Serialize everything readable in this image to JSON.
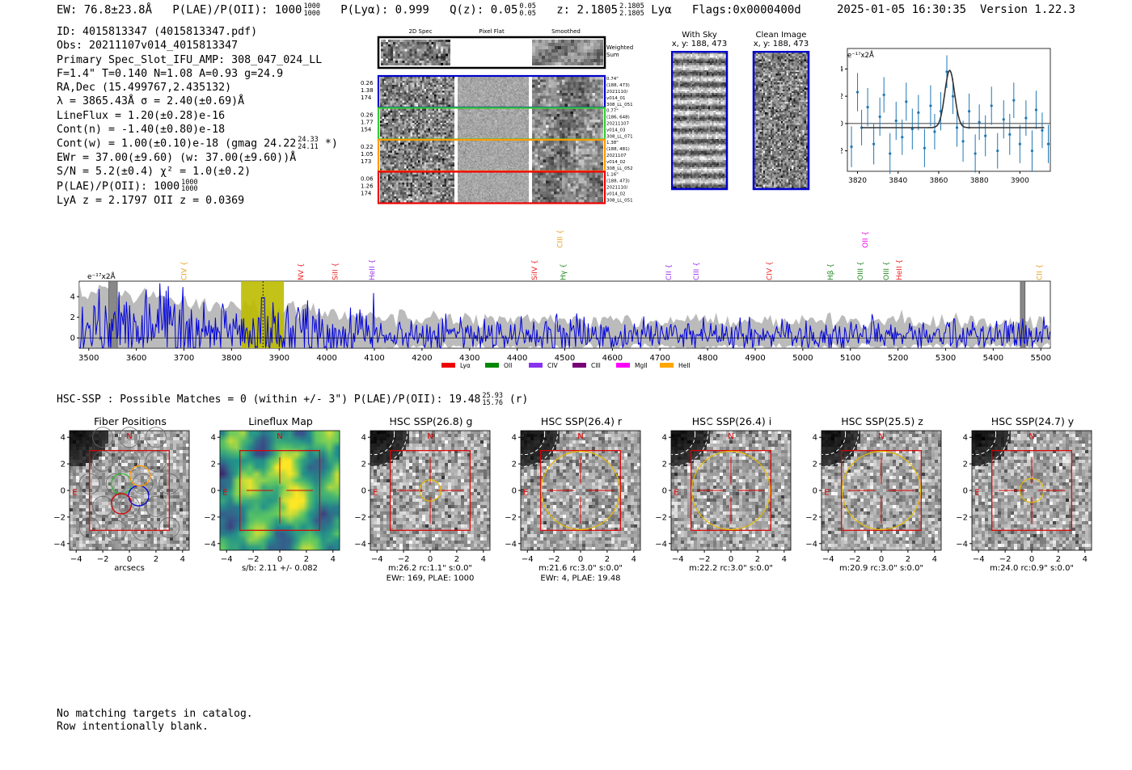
{
  "header": {
    "ew": "EW: 76.8±23.8Å",
    "plae": "P(LAE)/P(OII): 1000",
    "plae_hi": "1000",
    "plae_lo": "1000",
    "plya": "P(Lyα): 0.999",
    "qz": "Q(z): 0.05",
    "qz_hi": "0.05",
    "qz_lo": "0.05",
    "z": "z: 2.1805",
    "z_hi": "2.1805",
    "z_lo": "2.1805",
    "line": "Lyα",
    "flags": "Flags:0x0000400d",
    "timestamp": "2025-01-05 16:30:35",
    "version": "Version 1.22.3"
  },
  "info": {
    "id": "ID: 4015813347 (4015813347.pdf)",
    "obs": "Obs: 20211107v014_4015813347",
    "primary": "Primary Spec_Slot_IFU_AMP: 308_047_024_LL",
    "fit": "F=1.4\"  T=0.140  N=1.08  A=0.93  g=24.9",
    "radec": "RA,Dec (15.499767,2.435132)",
    "lambda": "λ = 3865.43Å  σ = 2.40(±0.69)Å",
    "lineflux": "LineFlux = 1.20(±0.28)e-16",
    "contn": "Cont(n) = -1.40(±0.80)e-18",
    "contw": "Cont(w) = 1.00(±0.10)e-18 (gmag 24.22",
    "contw_hi": "24.33",
    "contw_lo": "24.11",
    "contw_end": "*)",
    "ewr": "EWr = 37.00(±9.60) (w: 37.00(±9.60))Å",
    "sn": "S/N = 5.2(±0.4)  χ² = 1.0(±0.2)",
    "plae": "P(LAE)/P(OII): 1000",
    "plae_hi": "1000",
    "plae_lo": "1000",
    "lya_z": "LyA z = 2.1797  OII z = 0.0369"
  },
  "cutouts": {
    "col_2d": "2D Spec",
    "col_flat": "Pixel Flat",
    "col_smooth": "Smoothed",
    "weighted": "Weighted",
    "sum": "Sum",
    "rows": [
      {
        "color": "#0000cc",
        "left": [
          "0.26",
          "1.38",
          "174"
        ],
        "right": [
          "0.74\"",
          "(188, 473)",
          "2021110/",
          "v014_01",
          "308_LL_051"
        ]
      },
      {
        "color": "#33cc33",
        "left": [
          "0.26",
          "1.77",
          "154"
        ],
        "right": [
          "0.77\"",
          "(186, 648)",
          "20211107",
          "v014_03",
          "308_LL_071"
        ]
      },
      {
        "color": "#ff9900",
        "left": [
          "0.22",
          "1.05",
          "173"
        ],
        "right": [
          "1.38\"",
          "(188, 481)",
          "2021107",
          "v014_02",
          "308_LL_052"
        ]
      },
      {
        "color": "#ee0000",
        "left": [
          "0.06",
          "1.26",
          "174"
        ],
        "right": [
          "1.16\"",
          "(188, 473)",
          "2021110/",
          "v014_02",
          "308_LL_051"
        ]
      }
    ],
    "with_sky": "With Sky",
    "with_sky_xy": "x, y: 188, 473",
    "clean": "Clean Image",
    "clean_xy": "x, y: 188, 473"
  },
  "zoom_plot": {
    "unit": "e⁻¹⁷x2Å",
    "xticks": [
      "3820",
      "3840",
      "3860",
      "3880",
      "3900"
    ],
    "yticks": [
      "4",
      "2",
      "0",
      "−2"
    ]
  },
  "full_spectrum": {
    "unit": "e⁻¹⁷x2Å",
    "xticks": [
      "3500",
      "3600",
      "3700",
      "3800",
      "3900",
      "4000",
      "4100",
      "4200",
      "4300",
      "4400",
      "4500",
      "4600",
      "4700",
      "4800",
      "4900",
      "5000",
      "5100",
      "5200",
      "5300",
      "5400",
      "5500"
    ],
    "yticks": [
      "4",
      "2",
      "0"
    ],
    "lines": [
      {
        "label": "CIV",
        "x": 3700,
        "color": "#e6a020",
        "row": "low"
      },
      {
        "label": "NV",
        "x": 3945,
        "color": "#ee2222",
        "row": "low"
      },
      {
        "label": "SiII",
        "x": 4018,
        "color": "#ee2222",
        "row": "low"
      },
      {
        "label": "HeII",
        "x": 4095,
        "color": "#9933ee",
        "row": "low"
      },
      {
        "label": "SiIV",
        "x": 4436,
        "color": "#ee2222",
        "row": "low"
      },
      {
        "label": "CIII",
        "x": 4490,
        "color": "#e6a020",
        "row": "high"
      },
      {
        "label": "Hγ",
        "x": 4497,
        "color": "#228822",
        "row": "low"
      },
      {
        "label": "CII",
        "x": 4718,
        "color": "#9933ee",
        "row": "low"
      },
      {
        "label": "CIII",
        "x": 4776,
        "color": "#9933ee",
        "row": "low"
      },
      {
        "label": "CIV",
        "x": 4930,
        "color": "#ee2222",
        "row": "low"
      },
      {
        "label": "Hβ",
        "x": 5058,
        "color": "#228822",
        "row": "low"
      },
      {
        "label": "OII",
        "x": 5131,
        "color": "#ee00ee",
        "row": "high"
      },
      {
        "label": "OIII",
        "x": 5121,
        "color": "#228822",
        "row": "low"
      },
      {
        "label": "OIII",
        "x": 5175,
        "color": "#228822",
        "row": "low"
      },
      {
        "label": "HeII",
        "x": 5202,
        "color": "#ee2222",
        "row": "low"
      },
      {
        "label": "CII",
        "x": 5497,
        "color": "#e6a020",
        "row": "low"
      }
    ],
    "legend": [
      {
        "label": "Lyα",
        "color": "#ee0000"
      },
      {
        "label": "OII",
        "color": "#008800"
      },
      {
        "label": "CIV",
        "color": "#8833ee"
      },
      {
        "label": "CIII",
        "color": "#770077"
      },
      {
        "label": "MgII",
        "color": "#ff00ff"
      },
      {
        "label": "HeII",
        "color": "#ffa500"
      }
    ]
  },
  "hsc": {
    "title": "HSC-SSP : Possible Matches = 0 (within +/- 3\")  P(LAE)/P(OII): 19.48",
    "title_hi": "25.93",
    "title_lo": "15.76",
    "title_end": "(r)",
    "panels": [
      {
        "title": "Fiber Positions",
        "caption": [
          "arcsecs"
        ],
        "type": "fiber"
      },
      {
        "title": "Lineflux Map",
        "caption": [
          "s/b: 2.11 +/- 0.082"
        ],
        "type": "flux"
      },
      {
        "title": "HSC SSP(26.8) g",
        "caption": [
          "m:26.2 rc:1.1\"  s:0.0\"",
          "EWr: 169, PLAE: 1000"
        ],
        "type": "img",
        "circle_r": 0.8
      },
      {
        "title": "HSC SSP(26.4) r",
        "caption": [
          "m:21.6 rc:3.0\"  s:0.0\"",
          "EWr: 4, PLAE: 19.48"
        ],
        "type": "img",
        "circle_r": 2.95
      },
      {
        "title": "HSC SSP(26.4) i",
        "caption": [
          "m:22.2 rc:3.0\"  s:0.0\""
        ],
        "type": "img",
        "circle_r": 2.95
      },
      {
        "title": "HSC SSP(25.5) z",
        "caption": [
          "m:20.9 rc:3.0\"  s:0.0\""
        ],
        "type": "img",
        "circle_r": 2.95
      },
      {
        "title": "HSC SSP(24.7) y",
        "caption": [
          "m:24.0 rc:0.9\"  s:0.0\""
        ],
        "type": "img",
        "circle_r": 0.9
      }
    ],
    "ticks": [
      "4",
      "2",
      "0",
      "−2",
      "−4"
    ],
    "xticks": [
      "−4",
      "−2",
      "0",
      "2",
      "4"
    ],
    "compass_n": "N",
    "compass_e": "E"
  },
  "footer": {
    "line1": "No matching targets in catalog.",
    "line2": "Row intentionally blank."
  },
  "chart_data": [
    {
      "type": "scatter",
      "title": "",
      "xlabel": "",
      "ylabel": "e⁻¹⁷x2Å",
      "xlim": [
        3815,
        3915
      ],
      "ylim": [
        -3.5,
        5.5
      ],
      "x": [
        3817,
        3820,
        3822,
        3825,
        3828,
        3831,
        3833,
        3836,
        3839,
        3842,
        3844,
        3847,
        3850,
        3853,
        3856,
        3858,
        3861,
        3864,
        3867,
        3869,
        3872,
        3875,
        3878,
        3880,
        3883,
        3886,
        3889,
        3892,
        3895,
        3897,
        3900,
        3903,
        3906,
        3908,
        3911,
        3914
      ],
      "y": [
        -1.7,
        2.3,
        -0.3,
        1.2,
        -1.5,
        0.5,
        2.1,
        -2.2,
        0.2,
        -1.0,
        1.6,
        -0.4,
        0.8,
        -1.8,
        1.3,
        -0.6,
        0.9,
        3.8,
        2.0,
        -0.3,
        -1.3,
        0.9,
        -2.2,
        0.1,
        -0.9,
        1.3,
        -2.0,
        0.3,
        -0.8,
        1.7,
        -1.5,
        0.4,
        -2.0,
        1.0,
        -0.5,
        -1.5
      ],
      "yerr": [
        1.5,
        1.4,
        1.3,
        1.4,
        1.5,
        1.4,
        1.3,
        1.5,
        1.4,
        1.3,
        1.4,
        1.5,
        1.3,
        1.4,
        1.5,
        1.3,
        1.4,
        1.2,
        1.3,
        1.4,
        1.5,
        1.3,
        1.4,
        1.3,
        1.5,
        1.4,
        1.3,
        1.4,
        1.5,
        1.3,
        1.4,
        1.3,
        1.5,
        1.4,
        1.3,
        1.4
      ],
      "fit": {
        "center": 3865.4,
        "sigma": 2.4,
        "amp": 4.2,
        "offset": -0.3
      }
    },
    {
      "type": "line",
      "title": "",
      "xlabel": "",
      "ylabel": "e⁻¹⁷x2Å",
      "xlim": [
        3480,
        5520
      ],
      "ylim": [
        -1.0,
        5.5
      ],
      "series": [
        {
          "name": "",
          "kind": "line",
          "color": "#0000dd"
        },
        {
          "name": "",
          "kind": "area",
          "color": "#bbbbbb"
        }
      ],
      "spectrum_seed": 7,
      "highlight_band": [
        3820,
        3910
      ],
      "masked": [
        [
          3542,
          3560
        ],
        [
          5457,
          5467
        ]
      ],
      "marker": 3866
    }
  ]
}
